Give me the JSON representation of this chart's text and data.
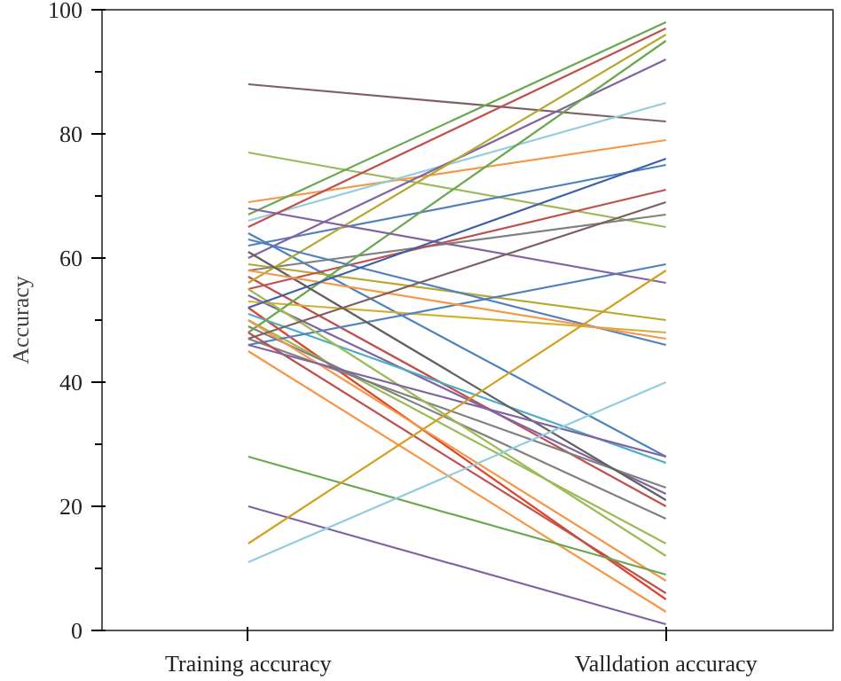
{
  "chart_data": {
    "type": "line",
    "ylabel": "Accuracy",
    "categories": [
      "Training accuracy",
      "Valldation accuracy"
    ],
    "ylim": [
      0,
      100
    ],
    "yticks": [
      0,
      20,
      40,
      60,
      80,
      100
    ],
    "grid": false,
    "marker": "none",
    "line_style": "solid",
    "series": [
      {
        "color": "#7f5f5f",
        "values": [
          88,
          82
        ]
      },
      {
        "color": "#9bbb59",
        "values": [
          77,
          65
        ]
      },
      {
        "color": "#f79646",
        "values": [
          69,
          79
        ]
      },
      {
        "color": "#6aa84f",
        "values": [
          67,
          98
        ]
      },
      {
        "color": "#93cddd",
        "values": [
          66,
          85
        ]
      },
      {
        "color": "#c0504d",
        "values": [
          65,
          97
        ]
      },
      {
        "color": "#4f81bd",
        "values": [
          64,
          28
        ]
      },
      {
        "color": "#4f81bd",
        "values": [
          62,
          75
        ]
      },
      {
        "color": "#8064a2",
        "values": [
          60,
          92
        ]
      },
      {
        "color": "#b8a830",
        "values": [
          59,
          50
        ]
      },
      {
        "color": "#808080",
        "values": [
          58,
          67
        ]
      },
      {
        "color": "#c0504d",
        "values": [
          57,
          20
        ]
      },
      {
        "color": "#b8a830",
        "values": [
          56,
          96
        ]
      },
      {
        "color": "#c0504d",
        "values": [
          55,
          71
        ]
      },
      {
        "color": "#8064a2",
        "values": [
          54,
          22
        ]
      },
      {
        "color": "#d4b030",
        "values": [
          53,
          48
        ]
      },
      {
        "color": "#e0442c",
        "values": [
          52,
          5
        ]
      },
      {
        "color": "#4bacc6",
        "values": [
          51,
          27
        ]
      },
      {
        "color": "#9bbb59",
        "values": [
          50,
          14
        ]
      },
      {
        "color": "#808080",
        "values": [
          49,
          18
        ]
      },
      {
        "color": "#6aa84f",
        "values": [
          48,
          95
        ]
      },
      {
        "color": "#808080",
        "values": [
          47,
          23
        ]
      },
      {
        "color": "#4f81bd",
        "values": [
          46,
          59
        ]
      },
      {
        "color": "#f79646",
        "values": [
          45,
          3
        ]
      },
      {
        "color": "#8064a2",
        "values": [
          68,
          56
        ]
      },
      {
        "color": "#4f81bd",
        "values": [
          63,
          46
        ]
      },
      {
        "color": "#606060",
        "values": [
          61,
          21
        ]
      },
      {
        "color": "#f79646",
        "values": [
          58,
          47
        ]
      },
      {
        "color": "#9bbb59",
        "values": [
          55,
          12
        ]
      },
      {
        "color": "#3f5fa8",
        "values": [
          52,
          76
        ]
      },
      {
        "color": "#f79646",
        "values": [
          50,
          8
        ]
      },
      {
        "color": "#c0504d",
        "values": [
          48,
          6
        ]
      },
      {
        "color": "#7f5f5f",
        "values": [
          47,
          69
        ]
      },
      {
        "color": "#8064a2",
        "values": [
          46,
          28
        ]
      },
      {
        "color": "#6aa84f",
        "values": [
          28,
          9
        ]
      },
      {
        "color": "#8064a2",
        "values": [
          20,
          1
        ]
      },
      {
        "color": "#d4a020",
        "values": [
          14,
          58
        ]
      },
      {
        "color": "#93cddd",
        "values": [
          11,
          40
        ]
      }
    ]
  }
}
